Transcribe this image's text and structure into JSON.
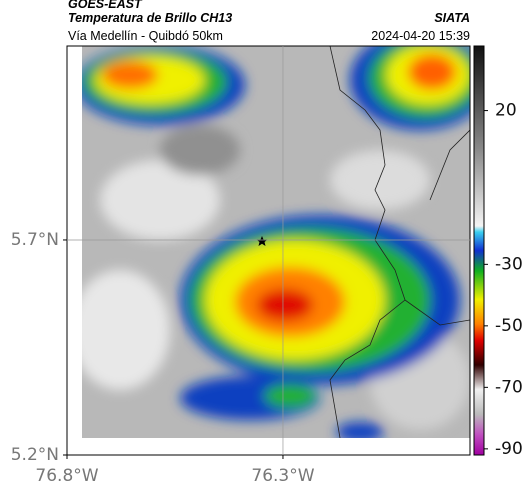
{
  "header": {
    "source": "GOES-EAST",
    "title": "Temperatura de Brillo CH13",
    "org": "SIATA",
    "subtitle": "Vía Medellín - Quibdó 50km",
    "datetime": "2024-04-20 15:39"
  },
  "map": {
    "lonlim": [
      -76.8,
      -75.867
    ],
    "latlim": [
      5.2,
      6.151
    ],
    "xticks": [
      {
        "value": -76.8,
        "label": "76.8°W"
      },
      {
        "value": -76.3,
        "label": "76.3°W"
      }
    ],
    "yticks": [
      {
        "value": 5.7,
        "label": "5.7°N"
      },
      {
        "value": 5.2,
        "label": "5.2°N"
      }
    ]
  },
  "colorbar": {
    "lim": [
      -92,
      41
    ],
    "ticks": [
      20,
      -30,
      -50,
      -70,
      -90
    ]
  }
}
